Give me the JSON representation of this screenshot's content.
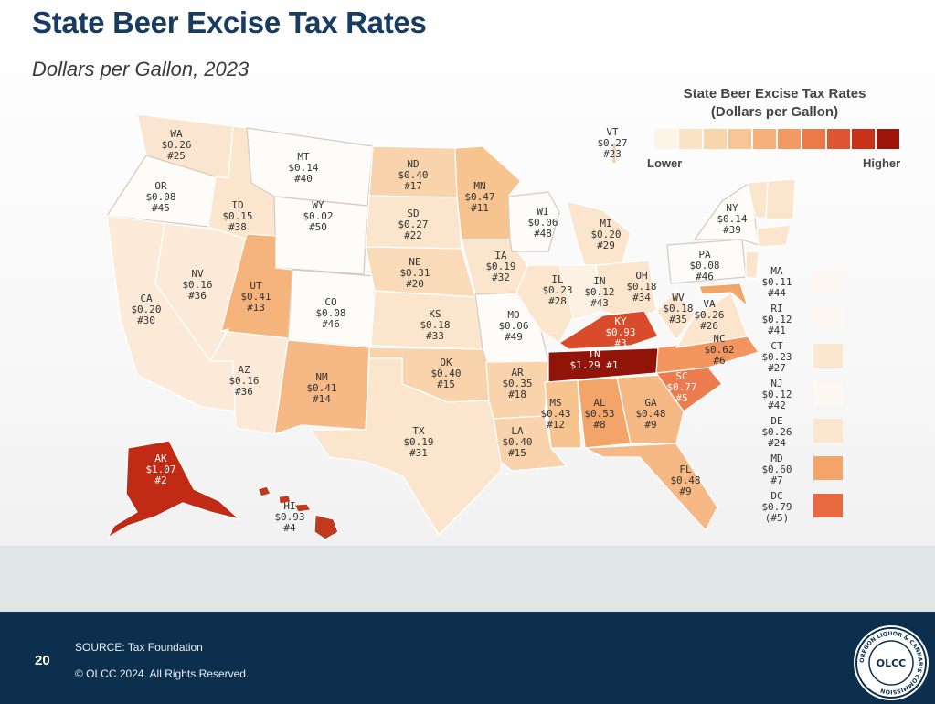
{
  "slide": {
    "title": "State Beer Excise Tax Rates",
    "subtitle": "Dollars per Gallon, 2023",
    "page_number": "20",
    "source": "SOURCE: Tax Foundation",
    "copyright": "© OLCC 2024. All Rights Reserved."
  },
  "legend": {
    "title_line1": "State Beer Excise Tax Rates",
    "title_line2": "(Dollars per Gallon)",
    "low_label": "Lower",
    "high_label": "Higher",
    "scale_colors": [
      "#fdf3e6",
      "#fbe3c6",
      "#f9d5ac",
      "#f8c596",
      "#f6b07a",
      "#f29a62",
      "#ec7a48",
      "#df5531",
      "#c8321b",
      "#9d1609"
    ]
  },
  "states": [
    {
      "abbr": "WA",
      "rate": "$0.26",
      "rank": "#25"
    },
    {
      "abbr": "OR",
      "rate": "$0.08",
      "rank": "#45"
    },
    {
      "abbr": "CA",
      "rate": "$0.20",
      "rank": "#30"
    },
    {
      "abbr": "NV",
      "rate": "$0.16",
      "rank": "#36"
    },
    {
      "abbr": "ID",
      "rate": "$0.15",
      "rank": "#38"
    },
    {
      "abbr": "MT",
      "rate": "$0.14",
      "rank": "#40"
    },
    {
      "abbr": "WY",
      "rate": "$0.02",
      "rank": "#50"
    },
    {
      "abbr": "UT",
      "rate": "$0.41",
      "rank": "#13"
    },
    {
      "abbr": "AZ",
      "rate": "$0.16",
      "rank": "#36"
    },
    {
      "abbr": "CO",
      "rate": "$0.08",
      "rank": "#46"
    },
    {
      "abbr": "NM",
      "rate": "$0.41",
      "rank": "#14"
    },
    {
      "abbr": "ND",
      "rate": "$0.40",
      "rank": "#17"
    },
    {
      "abbr": "SD",
      "rate": "$0.27",
      "rank": "#22"
    },
    {
      "abbr": "NE",
      "rate": "$0.31",
      "rank": "#20"
    },
    {
      "abbr": "KS",
      "rate": "$0.18",
      "rank": "#33"
    },
    {
      "abbr": "OK",
      "rate": "$0.40",
      "rank": "#15"
    },
    {
      "abbr": "TX",
      "rate": "$0.19",
      "rank": "#31"
    },
    {
      "abbr": "MN",
      "rate": "$0.47",
      "rank": "#11"
    },
    {
      "abbr": "IA",
      "rate": "$0.19",
      "rank": "#32"
    },
    {
      "abbr": "MO",
      "rate": "$0.06",
      "rank": "#49"
    },
    {
      "abbr": "AR",
      "rate": "$0.35",
      "rank": "#18"
    },
    {
      "abbr": "LA",
      "rate": "$0.40",
      "rank": "#15"
    },
    {
      "abbr": "WI",
      "rate": "$0.06",
      "rank": "#48"
    },
    {
      "abbr": "IL",
      "rate": "$0.23",
      "rank": "#28"
    },
    {
      "abbr": "MI",
      "rate": "$0.20",
      "rank": "#29"
    },
    {
      "abbr": "IN",
      "rate": "$0.12",
      "rank": "#43"
    },
    {
      "abbr": "OH",
      "rate": "$0.18",
      "rank": "#34"
    },
    {
      "abbr": "KY",
      "rate": "$0.93",
      "rank": "#3"
    },
    {
      "abbr": "TN",
      "rate": "$1.29",
      "rank": "#1"
    },
    {
      "abbr": "MS",
      "rate": "$0.43",
      "rank": "#12"
    },
    {
      "abbr": "AL",
      "rate": "$0.53",
      "rank": "#8"
    },
    {
      "abbr": "GA",
      "rate": "$0.48",
      "rank": "#9"
    },
    {
      "abbr": "FL",
      "rate": "$0.48",
      "rank": "#9"
    },
    {
      "abbr": "SC",
      "rate": "$0.77",
      "rank": "#5"
    },
    {
      "abbr": "NC",
      "rate": "$0.62",
      "rank": "#6"
    },
    {
      "abbr": "VA",
      "rate": "$0.26",
      "rank": "#26"
    },
    {
      "abbr": "WV",
      "rate": "$0.18",
      "rank": "#35"
    },
    {
      "abbr": "PA",
      "rate": "$0.08",
      "rank": "#46"
    },
    {
      "abbr": "NY",
      "rate": "$0.14",
      "rank": "#39"
    },
    {
      "abbr": "VT",
      "rate": "$0.27",
      "rank": "#23"
    },
    {
      "abbr": "AK",
      "rate": "$1.07",
      "rank": "#2"
    },
    {
      "abbr": "HI",
      "rate": "$0.93",
      "rank": "#4"
    }
  ],
  "small_states": [
    {
      "abbr": "MA",
      "rate": "$0.11",
      "rank": "#44",
      "color": "#fdf8f1"
    },
    {
      "abbr": "RI",
      "rate": "$0.12",
      "rank": "#41",
      "color": "#fdf8f1"
    },
    {
      "abbr": "CT",
      "rate": "$0.23",
      "rank": "#27",
      "color": "#fbe7cf"
    },
    {
      "abbr": "NJ",
      "rate": "$0.12",
      "rank": "#42",
      "color": "#fdf8f1"
    },
    {
      "abbr": "DE",
      "rate": "$0.26",
      "rank": "#24",
      "color": "#fbe7cf"
    },
    {
      "abbr": "MD",
      "rate": "$0.60",
      "rank": "#7",
      "color": "#f3a468"
    },
    {
      "abbr": "DC",
      "rate": "$0.79",
      "rank": "(#5)",
      "color": "#e96a40"
    }
  ],
  "logo": {
    "text": "OREGON LIQUOR & CANNABIS COMMISSION",
    "abbr": "OLCC"
  }
}
